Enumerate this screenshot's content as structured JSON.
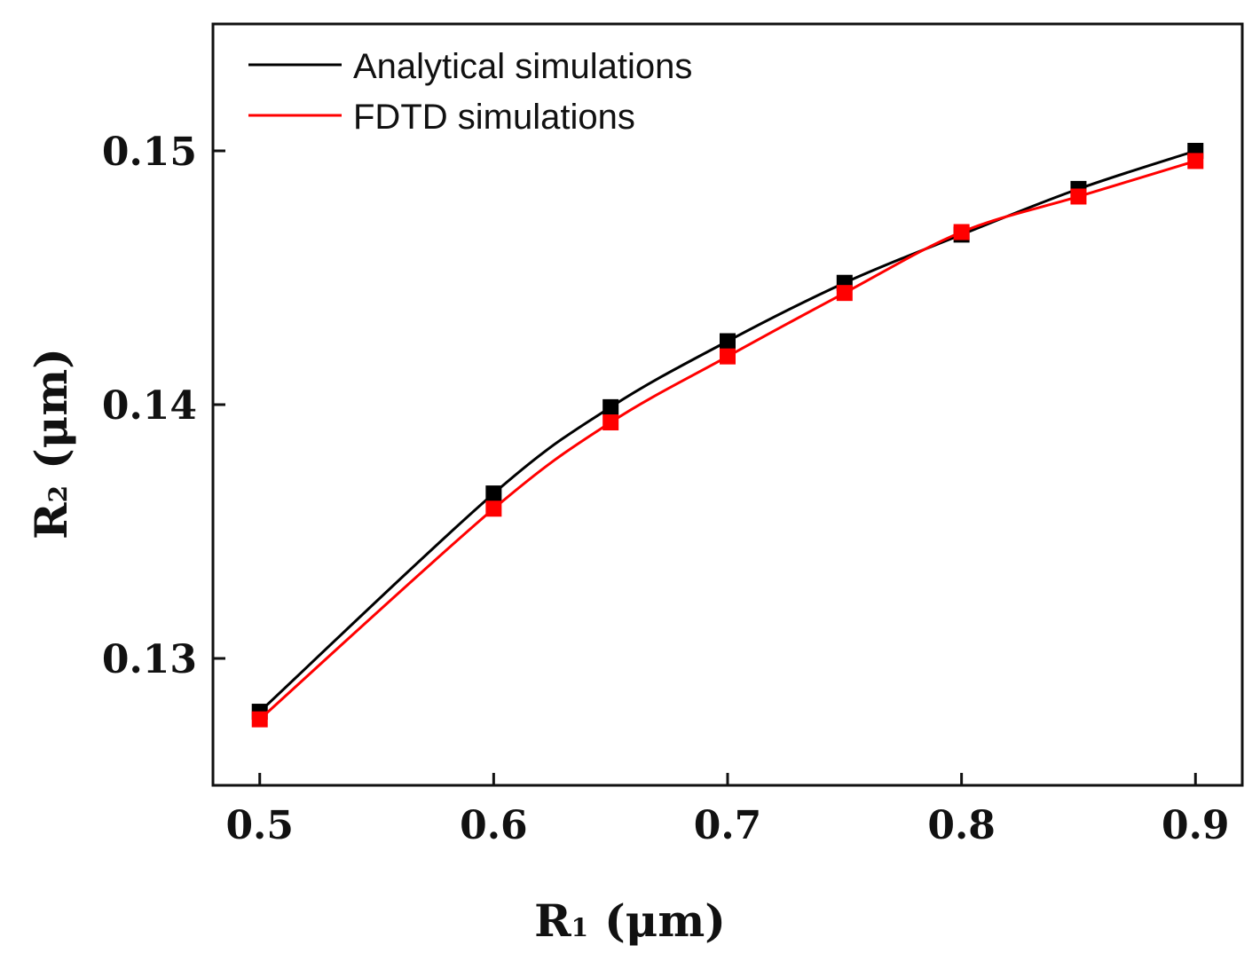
{
  "chart_data": {
    "type": "line",
    "title": "",
    "xlabel": {
      "main": "R",
      "sub": "1",
      "unit": "(μm)"
    },
    "ylabel": {
      "main": "R",
      "sub": "2",
      "unit": "(μm)"
    },
    "xlim": [
      0.48,
      0.92
    ],
    "ylim": [
      0.125,
      0.155
    ],
    "xticks": [
      0.5,
      0.6,
      0.7,
      0.8,
      0.9
    ],
    "xtick_labels": [
      "0.5",
      "0.6",
      "0.7",
      "0.8",
      "0.9"
    ],
    "yticks": [
      0.13,
      0.14,
      0.15
    ],
    "ytick_labels": [
      "0.13",
      "0.14",
      "0.15"
    ],
    "grid": false,
    "legend_position": "top-left",
    "series": [
      {
        "name": "Analytical simulations",
        "color": "#000000",
        "marker": "square",
        "x": [
          0.5,
          0.6,
          0.65,
          0.7,
          0.75,
          0.8,
          0.85,
          0.9
        ],
        "values": [
          0.1279,
          0.1365,
          0.1399,
          0.1425,
          0.1448,
          0.1467,
          0.1485,
          0.15
        ]
      },
      {
        "name": "FDTD simulations",
        "color": "#ff0000",
        "marker": "square",
        "x": [
          0.5,
          0.6,
          0.65,
          0.7,
          0.75,
          0.8,
          0.85,
          0.9
        ],
        "values": [
          0.1276,
          0.1359,
          0.1393,
          0.1419,
          0.1444,
          0.1468,
          0.1482,
          0.1496
        ]
      }
    ]
  }
}
